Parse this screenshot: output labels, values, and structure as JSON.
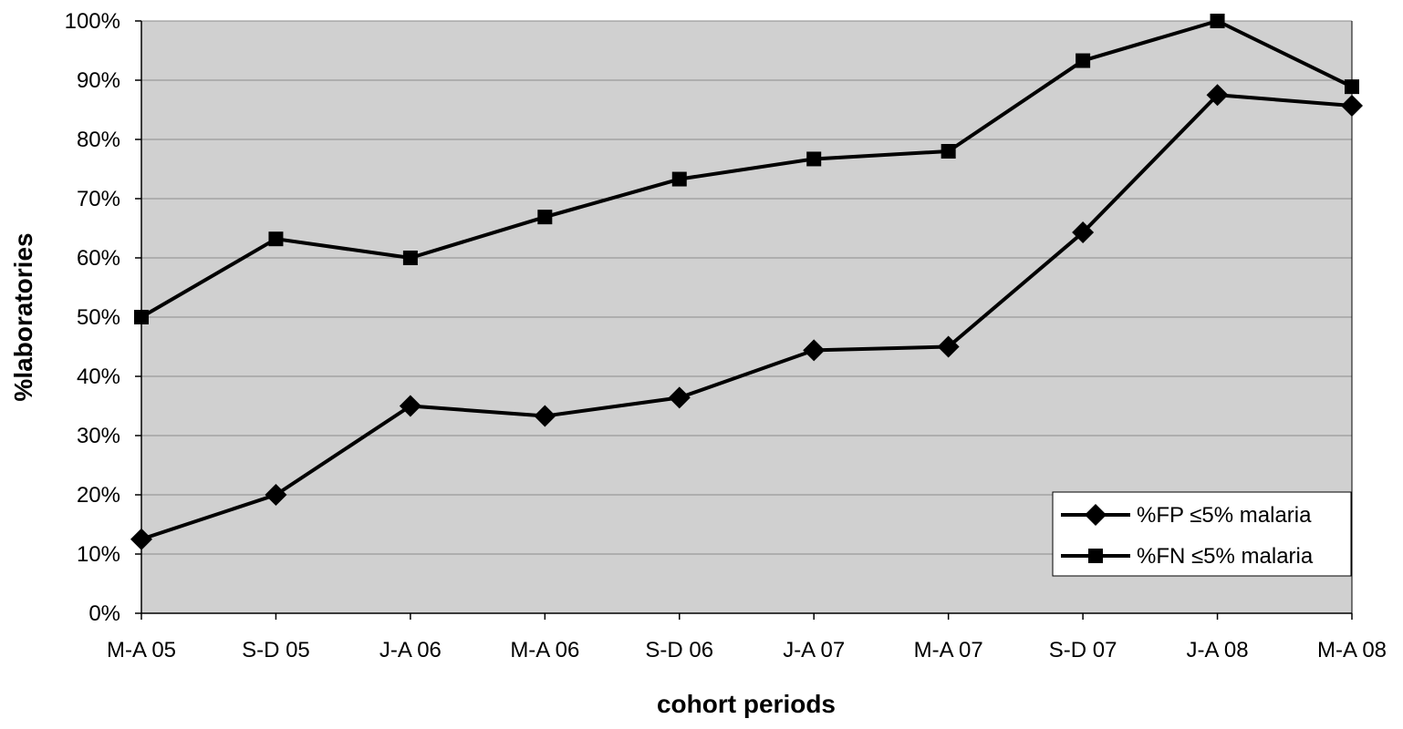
{
  "chart_data": {
    "type": "line",
    "title": "",
    "xlabel": "cohort periods",
    "ylabel": "%laboratories",
    "categories": [
      "M-A 05",
      "S-D 05",
      "J-A 06",
      "M-A 06",
      "S-D 06",
      "J-A 07",
      "M-A 07",
      "S-D 07",
      "J-A 08",
      "M-A 08"
    ],
    "y_ticks": [
      "0%",
      "10%",
      "20%",
      "30%",
      "40%",
      "50%",
      "60%",
      "70%",
      "80%",
      "90%",
      "100%"
    ],
    "ylim": [
      0,
      100
    ],
    "grid": "horizontal",
    "legend_position": "bottom-right",
    "plot_background": "#d0d0d0",
    "series": [
      {
        "name": "%FP ≤5% malaria",
        "marker": "diamond",
        "color": "#000000",
        "values": [
          12.5,
          20,
          35,
          33.3,
          36.4,
          44.4,
          45,
          64.3,
          87.5,
          85.7
        ]
      },
      {
        "name": "%FN ≤5% malaria",
        "marker": "square",
        "color": "#000000",
        "values": [
          50,
          63.2,
          60,
          66.9,
          73.3,
          76.7,
          78,
          93.3,
          100,
          88.9
        ]
      }
    ]
  }
}
